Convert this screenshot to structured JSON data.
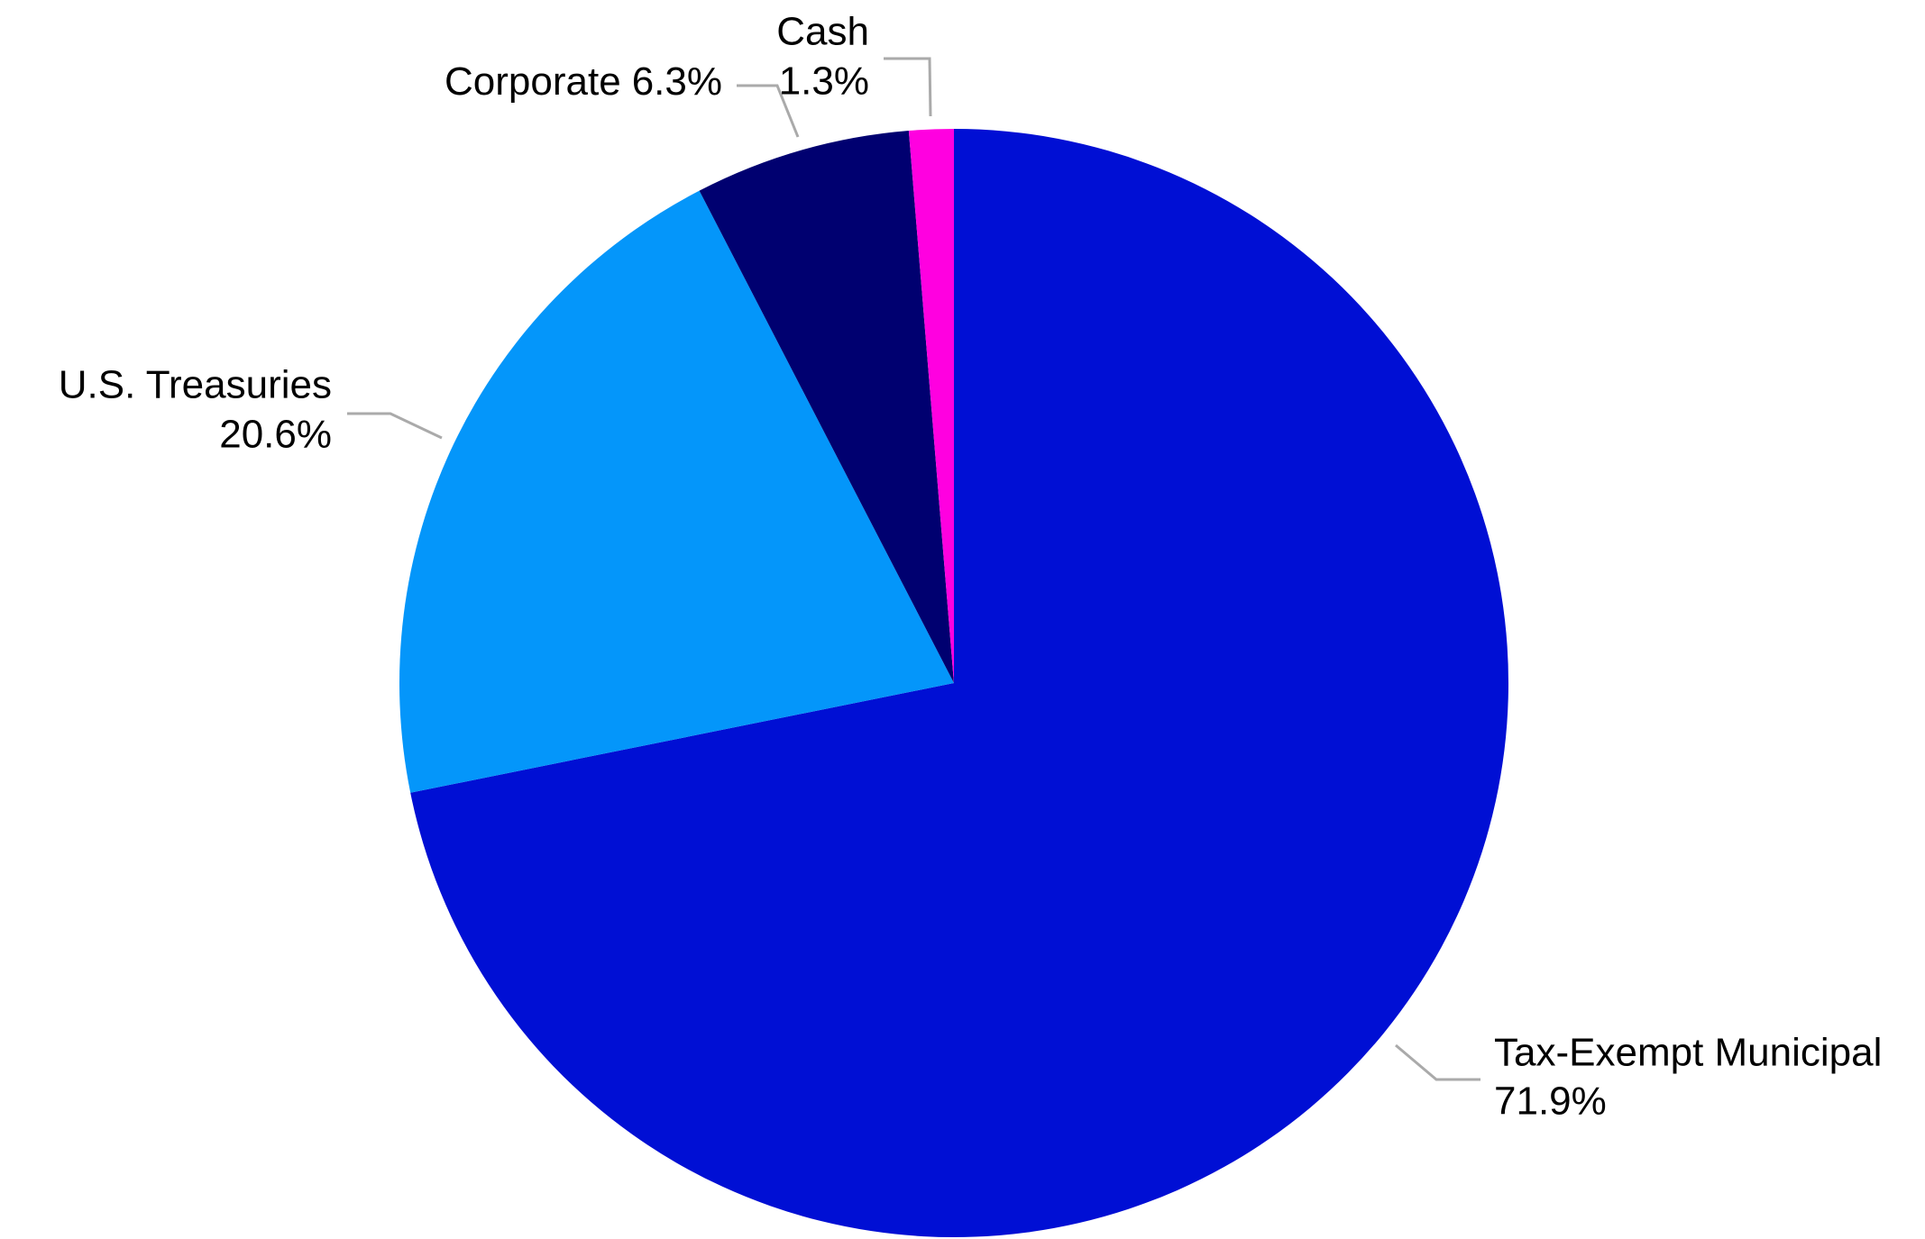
{
  "chart_data": {
    "type": "pie",
    "categories": [
      "Tax-Exempt Municipal",
      "U.S. Treasuries",
      "Corporate",
      "Cash"
    ],
    "values": [
      71.9,
      20.6,
      6.3,
      1.3
    ],
    "value_labels": [
      "71.9%",
      "20.6%",
      "6.3%",
      "1.3%"
    ],
    "colors": [
      "#000fd4",
      "#0496fa",
      "#000070",
      "#ff00e0"
    ]
  }
}
